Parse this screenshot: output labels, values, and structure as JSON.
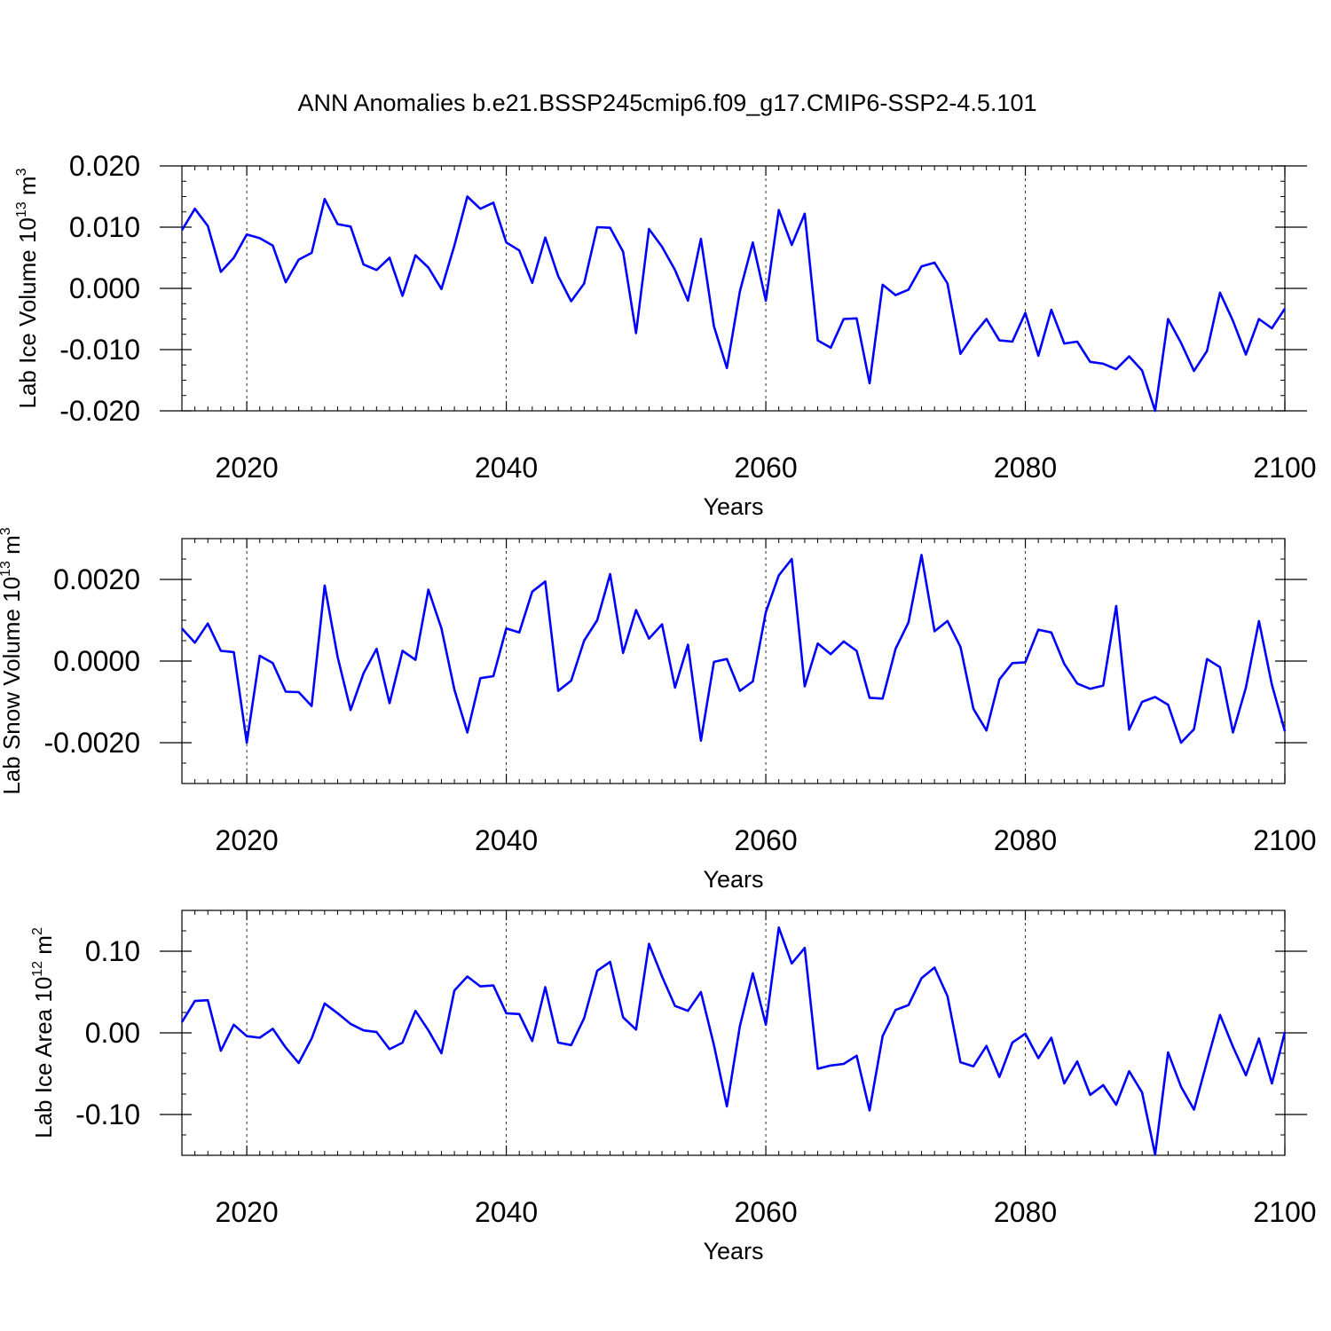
{
  "figure_title": "ANN Anomalies b.e21.BSSP245cmip6.f09_g17.CMIP6-SSP2-4.5.101",
  "colors": {
    "series": "#0000ff",
    "axis": "#000000",
    "grid": "#000000"
  },
  "chart_data": [
    {
      "type": "line",
      "title": "",
      "xlabel": "Years",
      "ylabel": {
        "text": "Lab Ice Volume 10",
        "sup": "13",
        "unit": " m",
        "unit_sup": "3"
      },
      "xlim": [
        2015,
        2100
      ],
      "ylim": [
        -0.02,
        0.02
      ],
      "x_ticks": [
        2020,
        2040,
        2060,
        2080,
        2100
      ],
      "x_tick_labels": [
        "2020",
        "2040",
        "2060",
        "2080",
        "2100"
      ],
      "y_ticks": [
        -0.02,
        -0.01,
        0.0,
        0.01,
        0.02
      ],
      "y_tick_labels": [
        "-0.020",
        "-0.010",
        "0.000",
        "0.010",
        "0.020"
      ],
      "y_minor_step": 0.0025,
      "x_minor_step": 1,
      "grid": "vertical dashed at major x ticks",
      "series": [
        {
          "x": [
            2015,
            2016,
            2017,
            2018,
            2019,
            2020,
            2021,
            2022,
            2023,
            2024,
            2025,
            2026,
            2027,
            2028,
            2029,
            2030,
            2031,
            2032,
            2033,
            2034,
            2035,
            2036,
            2037,
            2038,
            2039,
            2040,
            2041,
            2042,
            2043,
            2044,
            2045,
            2046,
            2047,
            2048,
            2049,
            2050,
            2051,
            2052,
            2053,
            2054,
            2055,
            2056,
            2057,
            2058,
            2059,
            2060,
            2061,
            2062,
            2063,
            2064,
            2065,
            2066,
            2067,
            2068,
            2069,
            2070,
            2071,
            2072,
            2073,
            2074,
            2075,
            2076,
            2077,
            2078,
            2079,
            2080,
            2081,
            2082,
            2083,
            2084,
            2085,
            2086,
            2087,
            2088,
            2089,
            2090,
            2091,
            2092,
            2093,
            2094,
            2095,
            2096,
            2097,
            2098,
            2099,
            2100
          ],
          "values": [
            0.0095,
            0.013,
            0.0102,
            0.0027,
            0.005,
            0.0088,
            0.0082,
            0.007,
            0.001,
            0.0047,
            0.0058,
            0.0146,
            0.0105,
            0.0101,
            0.0039,
            0.003,
            0.005,
            -0.0012,
            0.0054,
            0.0034,
            -0.0001,
            0.007,
            0.015,
            0.013,
            0.014,
            0.0075,
            0.0062,
            0.0009,
            0.0083,
            0.002,
            -0.0021,
            0.0008,
            0.01,
            0.0099,
            0.006,
            -0.0073,
            0.0097,
            0.0068,
            0.003,
            -0.002,
            0.0081,
            -0.0062,
            -0.013,
            -0.0005,
            0.0075,
            -0.002,
            0.0128,
            0.0071,
            0.0122,
            -0.0085,
            -0.0097,
            -0.005,
            -0.0049,
            -0.0155,
            0.0006,
            -0.0011,
            -0.0002,
            0.0036,
            0.0042,
            0.0008,
            -0.0107,
            -0.0076,
            -0.005,
            -0.0085,
            -0.0087,
            -0.004,
            -0.011,
            -0.0035,
            -0.009,
            -0.0087,
            -0.012,
            -0.0123,
            -0.0132,
            -0.0111,
            -0.0134,
            -0.02,
            -0.005,
            -0.0089,
            -0.0135,
            -0.0102,
            -0.0007,
            -0.0053,
            -0.0108,
            -0.005,
            -0.0065,
            -0.0033
          ]
        }
      ]
    },
    {
      "type": "line",
      "title": "",
      "xlabel": "Years",
      "ylabel": {
        "text": "Lab Snow Volume 10",
        "sup": "13",
        "unit": " m",
        "unit_sup": "3"
      },
      "xlim": [
        2015,
        2100
      ],
      "ylim": [
        -0.003,
        0.003
      ],
      "x_ticks": [
        2020,
        2040,
        2060,
        2080,
        2100
      ],
      "x_tick_labels": [
        "2020",
        "2040",
        "2060",
        "2080",
        "2100"
      ],
      "y_ticks": [
        -0.002,
        0.0,
        0.002
      ],
      "y_tick_labels": [
        "-0.0020",
        "0.0000",
        "0.0020"
      ],
      "y_minor_step": 0.0005,
      "x_minor_step": 1,
      "grid": "vertical dashed at major x ticks",
      "series": [
        {
          "x": [
            2015,
            2016,
            2017,
            2018,
            2019,
            2020,
            2021,
            2022,
            2023,
            2024,
            2025,
            2026,
            2027,
            2028,
            2029,
            2030,
            2031,
            2032,
            2033,
            2034,
            2035,
            2036,
            2037,
            2038,
            2039,
            2040,
            2041,
            2042,
            2043,
            2044,
            2045,
            2046,
            2047,
            2048,
            2049,
            2050,
            2051,
            2052,
            2053,
            2054,
            2055,
            2056,
            2057,
            2058,
            2059,
            2060,
            2061,
            2062,
            2063,
            2064,
            2065,
            2066,
            2067,
            2068,
            2069,
            2070,
            2071,
            2072,
            2073,
            2074,
            2075,
            2076,
            2077,
            2078,
            2079,
            2080,
            2081,
            2082,
            2083,
            2084,
            2085,
            2086,
            2087,
            2088,
            2089,
            2090,
            2091,
            2092,
            2093,
            2094,
            2095,
            2096,
            2097,
            2098,
            2099,
            2100
          ],
          "values": [
            0.0008,
            0.00045,
            0.00092,
            0.00025,
            0.00022,
            -0.002,
            0.00013,
            -5e-05,
            -0.00075,
            -0.00076,
            -0.0011,
            0.00185,
            0.0001,
            -0.0012,
            -0.0003,
            0.0003,
            -0.00103,
            0.00025,
            3e-05,
            0.00175,
            0.0008,
            -0.0007,
            -0.00175,
            -0.00042,
            -0.00037,
            0.0008,
            0.0007,
            0.0017,
            0.00195,
            -0.00073,
            -0.00048,
            0.0005,
            0.001,
            0.00213,
            0.0002,
            0.00125,
            0.00055,
            0.0009,
            -0.00065,
            0.0004,
            -0.00195,
            -2e-05,
            5e-05,
            -0.00073,
            -0.0005,
            0.0012,
            0.0021,
            0.0025,
            -0.00062,
            0.00043,
            0.00017,
            0.00048,
            0.00025,
            -0.0009,
            -0.00092,
            0.0003,
            0.00095,
            0.0026,
            0.00073,
            0.00098,
            0.00035,
            -0.00117,
            -0.0017,
            -0.00045,
            -5e-05,
            -3e-05,
            0.00077,
            0.0007,
            -7e-05,
            -0.00055,
            -0.00068,
            -0.0006,
            0.00135,
            -0.00168,
            -0.001,
            -0.00088,
            -0.00107,
            -0.002,
            -0.00167,
            5e-05,
            -0.00015,
            -0.00175,
            -0.00065,
            0.00098,
            -0.00058,
            -0.00172
          ]
        }
      ]
    },
    {
      "type": "line",
      "title": "",
      "xlabel": "Years",
      "ylabel": {
        "text": "Lab Ice Area 10",
        "sup": "12",
        "unit": " m",
        "unit_sup": "2"
      },
      "xlim": [
        2015,
        2100
      ],
      "ylim": [
        -0.15,
        0.15
      ],
      "x_ticks": [
        2020,
        2040,
        2060,
        2080,
        2100
      ],
      "x_tick_labels": [
        "2020",
        "2040",
        "2060",
        "2080",
        "2100"
      ],
      "y_ticks": [
        -0.1,
        0.0,
        0.1
      ],
      "y_tick_labels": [
        "-0.10",
        "0.00",
        "0.10"
      ],
      "y_minor_step": 0.025,
      "x_minor_step": 1,
      "grid": "vertical dashed at major x ticks",
      "series": [
        {
          "x": [
            2015,
            2016,
            2017,
            2018,
            2019,
            2020,
            2021,
            2022,
            2023,
            2024,
            2025,
            2026,
            2027,
            2028,
            2029,
            2030,
            2031,
            2032,
            2033,
            2034,
            2035,
            2036,
            2037,
            2038,
            2039,
            2040,
            2041,
            2042,
            2043,
            2044,
            2045,
            2046,
            2047,
            2048,
            2049,
            2050,
            2051,
            2052,
            2053,
            2054,
            2055,
            2056,
            2057,
            2058,
            2059,
            2060,
            2061,
            2062,
            2063,
            2064,
            2065,
            2066,
            2067,
            2068,
            2069,
            2070,
            2071,
            2072,
            2073,
            2074,
            2075,
            2076,
            2077,
            2078,
            2079,
            2080,
            2081,
            2082,
            2083,
            2084,
            2085,
            2086,
            2087,
            2088,
            2089,
            2090,
            2091,
            2092,
            2093,
            2094,
            2095,
            2096,
            2097,
            2098,
            2099,
            2100
          ],
          "values": [
            0.013,
            0.039,
            0.04,
            -0.022,
            0.01,
            -0.004,
            -0.006,
            0.005,
            -0.018,
            -0.037,
            -0.007,
            0.036,
            0.024,
            0.011,
            0.003,
            0.001,
            -0.02,
            -0.012,
            0.027,
            0.003,
            -0.025,
            0.052,
            0.069,
            0.057,
            0.058,
            0.024,
            0.023,
            -0.01,
            0.056,
            -0.012,
            -0.015,
            0.018,
            0.076,
            0.087,
            0.019,
            0.004,
            0.109,
            0.069,
            0.033,
            0.027,
            0.05,
            -0.015,
            -0.09,
            0.008,
            0.073,
            0.01,
            0.129,
            0.085,
            0.104,
            -0.044,
            -0.04,
            -0.038,
            -0.028,
            -0.095,
            -0.004,
            0.028,
            0.034,
            0.067,
            0.08,
            0.045,
            -0.036,
            -0.041,
            -0.016,
            -0.054,
            -0.012,
            -0.001,
            -0.031,
            -0.006,
            -0.062,
            -0.035,
            -0.076,
            -0.064,
            -0.088,
            -0.047,
            -0.073,
            -0.149,
            -0.024,
            -0.066,
            -0.094,
            -0.035,
            0.022,
            -0.017,
            -0.052,
            -0.007,
            -0.062,
            0.001
          ]
        }
      ]
    }
  ]
}
